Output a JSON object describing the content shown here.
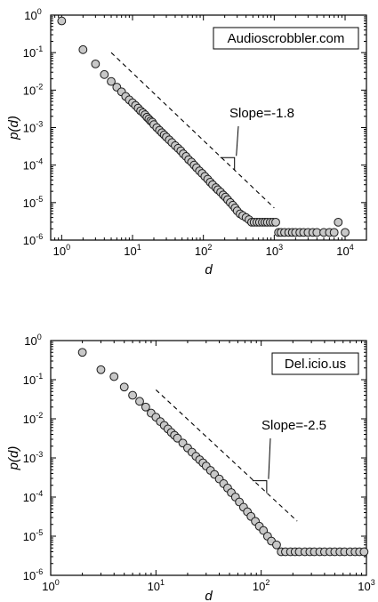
{
  "chart_data": [
    {
      "type": "scatter",
      "title": "",
      "legend_label": "Audioscrobbler.com",
      "legend_position": "top-right",
      "xlabel": "d",
      "ylabel": "p(d)",
      "x_scale": "log",
      "y_scale": "log",
      "xlim": [
        0.7,
        20000
      ],
      "ylim": [
        1e-06,
        1
      ],
      "x_ticks": [
        {
          "base": "10",
          "exp": "0"
        },
        {
          "base": "10",
          "exp": "1"
        },
        {
          "base": "10",
          "exp": "2"
        },
        {
          "base": "10",
          "exp": "3"
        },
        {
          "base": "10",
          "exp": "4"
        }
      ],
      "y_ticks": [
        {
          "base": "10",
          "exp": "0"
        },
        {
          "base": "10",
          "exp": "-1"
        },
        {
          "base": "10",
          "exp": "-2"
        },
        {
          "base": "10",
          "exp": "-3"
        },
        {
          "base": "10",
          "exp": "-4"
        },
        {
          "base": "10",
          "exp": "-5"
        },
        {
          "base": "10",
          "exp": "-6"
        }
      ],
      "annotation": "Slope=-1.8",
      "slope": -1.8,
      "guide_line_x": [
        5,
        1000
      ],
      "points": {
        "x": [
          1,
          2,
          3,
          4,
          5,
          6,
          7,
          8,
          9,
          10,
          11,
          12,
          13,
          14,
          15,
          16,
          17,
          18,
          19,
          20,
          22,
          24,
          26,
          28,
          30,
          33,
          36,
          40,
          44,
          48,
          52,
          57,
          62,
          68,
          74,
          80,
          88,
          96,
          105,
          115,
          125,
          135,
          150,
          160,
          175,
          190,
          205,
          220,
          240,
          260,
          280,
          300,
          330,
          360,
          400,
          440,
          480,
          520,
          570,
          620,
          680,
          740,
          800,
          880,
          960,
          1050,
          1150,
          1250,
          1400,
          1600,
          1800,
          2000,
          2300,
          2600,
          3000,
          3500,
          4000,
          5000,
          6000,
          7000,
          8000,
          10000
        ],
        "y": [
          0.7,
          0.12,
          0.05,
          0.026,
          0.017,
          0.012,
          0.009,
          0.0068,
          0.0055,
          0.0046,
          0.0039,
          0.0033,
          0.0028,
          0.0025,
          0.0022,
          0.0019,
          0.0017,
          0.0015,
          0.0014,
          0.0012,
          0.001,
          0.00085,
          0.00073,
          0.00064,
          0.00056,
          0.00047,
          0.0004,
          0.00033,
          0.00028,
          0.00024,
          0.0002,
          0.00017,
          0.00014,
          0.00012,
          0.0001,
          8.5e-05,
          7e-05,
          6e-05,
          5e-05,
          4.2e-05,
          3.5e-05,
          3e-05,
          2.5e-05,
          2.2e-05,
          1.9e-05,
          1.6e-05,
          1.4e-05,
          1.2e-05,
          1e-05,
          8.5e-06,
          7.2e-06,
          6e-06,
          5e-06,
          4.5e-06,
          4e-06,
          3.5e-06,
          3e-06,
          3e-06,
          3e-06,
          3e-06,
          3e-06,
          3e-06,
          3e-06,
          3e-06,
          3e-06,
          3e-06,
          1.6e-06,
          1.6e-06,
          1.6e-06,
          1.6e-06,
          1.6e-06,
          1.6e-06,
          1.6e-06,
          1.6e-06,
          1.6e-06,
          1.6e-06,
          1.6e-06,
          1.6e-06,
          1.6e-06,
          1.6e-06,
          3e-06,
          1.6e-06
        ]
      }
    },
    {
      "type": "scatter",
      "title": "",
      "legend_label": "Del.icio.us",
      "legend_position": "top-right",
      "xlabel": "d",
      "ylabel": "p(d)",
      "x_scale": "log",
      "y_scale": "log",
      "xlim": [
        1,
        1000
      ],
      "ylim": [
        1e-06,
        1
      ],
      "x_ticks": [
        {
          "base": "10",
          "exp": "0"
        },
        {
          "base": "10",
          "exp": "1"
        },
        {
          "base": "10",
          "exp": "2"
        },
        {
          "base": "10",
          "exp": "3"
        }
      ],
      "y_ticks": [
        {
          "base": "10",
          "exp": "0"
        },
        {
          "base": "10",
          "exp": "-1"
        },
        {
          "base": "10",
          "exp": "-2"
        },
        {
          "base": "10",
          "exp": "-3"
        },
        {
          "base": "10",
          "exp": "-4"
        },
        {
          "base": "10",
          "exp": "-5"
        },
        {
          "base": "10",
          "exp": "-6"
        }
      ],
      "annotation": "Slope=-2.5",
      "slope": -2.5,
      "guide_line_x": [
        10,
        220
      ],
      "points": {
        "x": [
          2,
          3,
          4,
          5,
          6,
          7,
          8,
          9,
          10,
          11,
          12,
          13,
          14,
          15,
          16,
          18,
          20,
          22,
          24,
          26,
          28,
          30,
          33,
          36,
          40,
          44,
          48,
          52,
          57,
          62,
          68,
          74,
          80,
          88,
          96,
          105,
          115,
          125,
          140,
          155,
          170,
          190,
          210,
          230,
          260,
          290,
          320,
          360,
          400,
          450,
          500,
          560,
          620,
          700,
          780,
          860,
          950
        ],
        "y": [
          0.5,
          0.18,
          0.12,
          0.065,
          0.04,
          0.028,
          0.02,
          0.014,
          0.011,
          0.0085,
          0.0068,
          0.0055,
          0.0045,
          0.0038,
          0.0032,
          0.0024,
          0.0018,
          0.0014,
          0.0011,
          0.0009,
          0.00075,
          0.00062,
          0.00048,
          0.00038,
          0.00029,
          0.00022,
          0.00017,
          0.00013,
          0.0001,
          7.5e-05,
          5.5e-05,
          4.2e-05,
          3.2e-05,
          2.4e-05,
          1.8e-05,
          1.4e-05,
          1e-05,
          7.5e-06,
          6e-06,
          4e-06,
          4e-06,
          4e-06,
          4e-06,
          4e-06,
          4e-06,
          4e-06,
          4e-06,
          4e-06,
          4e-06,
          4e-06,
          4e-06,
          4e-06,
          4e-06,
          4e-06,
          4e-06,
          4e-06,
          4e-06
        ]
      }
    }
  ]
}
